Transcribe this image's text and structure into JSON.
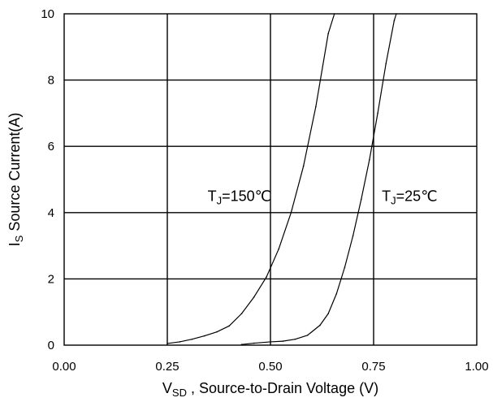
{
  "chart_data": {
    "type": "line",
    "xlabel": {
      "main": "V",
      "sub": "SD",
      "rest": " , Source-to-Drain Voltage (V)"
    },
    "ylabel": {
      "main": "I",
      "sub": "S",
      "rest": " Source Current(A)"
    },
    "xlim": [
      0,
      1
    ],
    "ylim": [
      0,
      10
    ],
    "x_ticks": [
      0,
      0.25,
      0.5,
      0.75,
      1
    ],
    "x_tick_labels": [
      "0.00",
      "0.25",
      "0.50",
      "0.75",
      "1.00"
    ],
    "y_ticks": [
      0,
      2,
      4,
      6,
      8,
      10
    ],
    "y_tick_labels": [
      "0",
      "2",
      "4",
      "6",
      "8",
      "10"
    ],
    "grid": true,
    "series": [
      {
        "name": "T_J=150℃",
        "x": [
          0.25,
          0.28,
          0.31,
          0.34,
          0.37,
          0.4,
          0.43,
          0.46,
          0.49,
          0.52,
          0.55,
          0.58,
          0.61,
          0.64,
          0.655
        ],
        "y": [
          0.05,
          0.1,
          0.18,
          0.28,
          0.4,
          0.58,
          0.95,
          1.45,
          2.05,
          2.9,
          4.0,
          5.4,
          7.2,
          9.4,
          10.0
        ]
      },
      {
        "name": "T_J=25℃",
        "x": [
          0.43,
          0.46,
          0.5,
          0.53,
          0.56,
          0.59,
          0.62,
          0.64,
          0.66,
          0.68,
          0.7,
          0.72,
          0.74,
          0.76,
          0.78,
          0.8,
          0.805
        ],
        "y": [
          0.02,
          0.06,
          0.1,
          0.12,
          0.18,
          0.3,
          0.6,
          0.95,
          1.55,
          2.35,
          3.3,
          4.4,
          5.6,
          7.0,
          8.5,
          9.8,
          10.0
        ]
      }
    ],
    "annotations": [
      {
        "main": "T",
        "sub": "J",
        "rest": "=150℃",
        "x": 0.515,
        "y": 4.5
      },
      {
        "main": "T",
        "sub": "J",
        "rest": "=25℃",
        "x": 0.77,
        "y": 4.5
      }
    ]
  }
}
